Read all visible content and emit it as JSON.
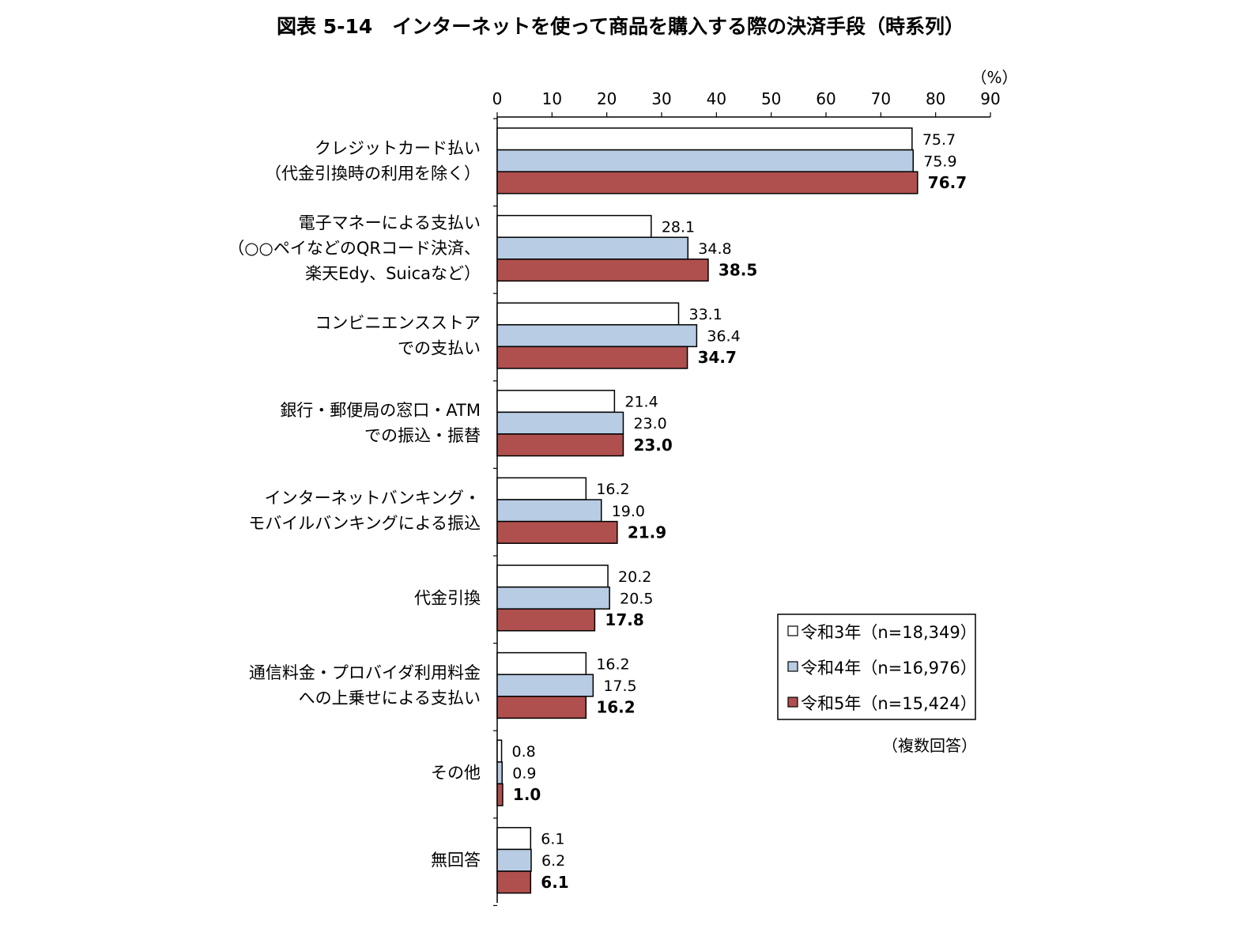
{
  "title": "図表 5-14　インターネットを使って商品を購入する際の決済手段（時系列）",
  "unit_label": "（%）",
  "note": "（複数回答）",
  "colors": {
    "series_0_fill": "#ffffff",
    "series_1_fill": "#b8cce4",
    "series_2_fill": "#b0504e",
    "bar_stroke": "#000000"
  },
  "chart_data": {
    "type": "bar",
    "orientation": "horizontal",
    "title": "図表 5-14　インターネットを使って商品を購入する際の決済手段（時系列）",
    "xlabel": "（%）",
    "ylabel": "",
    "xlim": [
      0,
      90
    ],
    "x_ticks": [
      0,
      10,
      20,
      30,
      40,
      50,
      60,
      70,
      80,
      90
    ],
    "grid": false,
    "legend_position": "bottom-right",
    "categories": [
      [
        "クレジットカード払い",
        "（代金引換時の利用を除く）"
      ],
      [
        "電子マネーによる支払い",
        "（○○ペイなどのQRコード決済、",
        "楽天Edy、Suicaなど）"
      ],
      [
        "コンビニエンスストア",
        "での支払い"
      ],
      [
        "銀行・郵便局の窓口・ATM",
        "での振込・振替"
      ],
      [
        "インターネットバンキング・",
        "モバイルバンキングによる振込"
      ],
      [
        "代金引換"
      ],
      [
        "通信料金・プロバイダ利用料金",
        "への上乗せによる支払い"
      ],
      [
        "その他"
      ],
      [
        "無回答"
      ]
    ],
    "series": [
      {
        "name": "令和3年（n=18,349）",
        "values": [
          75.7,
          28.1,
          33.1,
          21.4,
          16.2,
          20.2,
          16.2,
          0.8,
          6.1
        ],
        "labels": [
          "75.7",
          "28.1",
          "33.1",
          "21.4",
          "16.2",
          "20.2",
          "16.2",
          "0.8",
          "6.1"
        ]
      },
      {
        "name": "令和4年（n=16,976）",
        "values": [
          75.9,
          34.8,
          36.4,
          23.0,
          19.0,
          20.5,
          17.5,
          0.9,
          6.2
        ],
        "labels": [
          "75.9",
          "34.8",
          "36.4",
          "23.0",
          "19.0",
          "20.5",
          "17.5",
          "0.9",
          "6.2"
        ]
      },
      {
        "name": "令和5年（n=15,424）",
        "values": [
          76.7,
          38.5,
          34.7,
          23.0,
          21.9,
          17.8,
          16.2,
          1.0,
          6.1
        ],
        "labels": [
          "76.7",
          "38.5",
          "34.7",
          "23.0",
          "21.9",
          "17.8",
          "16.2",
          "1.0",
          "6.1"
        ]
      }
    ]
  }
}
